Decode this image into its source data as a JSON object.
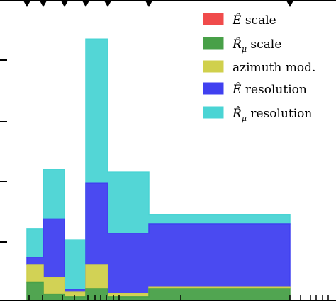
{
  "chart_data": {
    "type": "area",
    "subtype": "stacked step histogram",
    "title": "",
    "xlabel": "",
    "ylabel": "",
    "bin_edges": [
      0,
      1,
      2,
      3,
      4,
      6,
      13
    ],
    "series": [
      {
        "key": "e_scale",
        "legend_main": "Ê",
        "legend_sub": "",
        "legend_tail": " scale",
        "color": "#f04b4b",
        "values": [
          0,
          0,
          0,
          0,
          0,
          0
        ]
      },
      {
        "key": "r_scale",
        "legend_main": "R̂",
        "legend_sub": "μ",
        "legend_tail": " scale",
        "color": "#48a048",
        "values": [
          0.3,
          0.11,
          0.06,
          0.2,
          0.06,
          0.2
        ]
      },
      {
        "key": "azimuth",
        "legend_main": "azimuth mod.",
        "legend_sub": "",
        "legend_tail": "",
        "color": "#d0d04c",
        "values": [
          0.3,
          0.28,
          0.08,
          0.4,
          0.06,
          0.02
        ]
      },
      {
        "key": "e_res",
        "legend_main": "Ê",
        "legend_sub": "",
        "legend_tail": " resolution",
        "color": "#4040f0",
        "values": [
          0.12,
          0.97,
          0.05,
          1.35,
          1.0,
          1.05
        ]
      },
      {
        "key": "r_res",
        "legend_main": "R̂",
        "legend_sub": "μ",
        "legend_tail": " resolution",
        "color": "#4ad4d4",
        "values": [
          0.47,
          0.82,
          0.82,
          2.4,
          1.02,
          0.16
        ]
      }
    ],
    "legend_position": "top-right",
    "grid": false,
    "ylim": [
      0,
      5
    ],
    "xlim": [
      -0.1,
      13.5
    ]
  }
}
